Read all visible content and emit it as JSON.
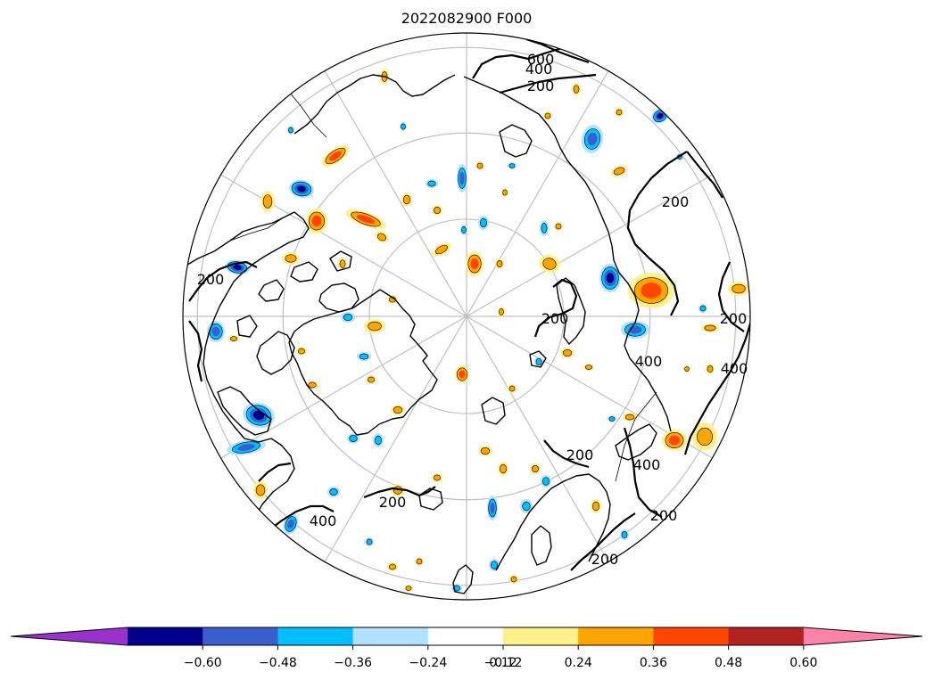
{
  "title": "2022082900 F000",
  "map": {
    "projection": "north-polar-stereographic",
    "meridian_count": 12,
    "latitude_circles": [
      80,
      70,
      60
    ],
    "boundary": "circle"
  },
  "contours": {
    "labels": [
      {
        "text": "600",
        "pos": [
          606,
          66
        ]
      },
      {
        "text": "400",
        "pos": [
          604,
          77
        ]
      },
      {
        "text": "200",
        "pos": [
          606,
          96
        ]
      },
      {
        "text": "200",
        "pos": [
          757,
          226
        ]
      },
      {
        "text": "200",
        "pos": [
          236,
          313
        ]
      },
      {
        "text": "200",
        "pos": [
          622,
          357
        ]
      },
      {
        "text": "200",
        "pos": [
          822,
          357
        ]
      },
      {
        "text": "400",
        "pos": [
          823,
          413
        ]
      },
      {
        "text": "400",
        "pos": [
          727,
          405
        ]
      },
      {
        "text": "200",
        "pos": [
          650,
          510
        ]
      },
      {
        "text": "400",
        "pos": [
          725,
          521
        ]
      },
      {
        "text": "200",
        "pos": [
          440,
          563
        ]
      },
      {
        "text": "400",
        "pos": [
          362,
          584
        ]
      },
      {
        "text": "200",
        "pos": [
          744,
          578
        ]
      },
      {
        "text": "200",
        "pos": [
          678,
          627
        ]
      }
    ]
  },
  "colorbar": {
    "ticks": [
      "−0.60",
      "−0.48",
      "−0.36",
      "−0.24",
      "−0.12",
      "0.12",
      "0.24",
      "0.36",
      "0.48",
      "0.60"
    ],
    "colors": [
      "#9932cc",
      "#00008b",
      "#3a5fcd",
      "#00bfff",
      "#b0e2ff",
      "#ffffff",
      "#fff08c",
      "#ffa500",
      "#ff4500",
      "#b22222",
      "#ff82ab"
    ],
    "extend": "both"
  },
  "colors": {
    "light_yellow": "#fff08c",
    "orange": "#ffa500",
    "red_orange": "#ff4500",
    "dark_red": "#b22222",
    "light_blue": "#b0e2ff",
    "deep_sky_blue": "#00bfff",
    "royal_blue": "#3a5fcd",
    "navy": "#00008b",
    "purple": "#9932cc",
    "grid": "#c0c0c0"
  }
}
